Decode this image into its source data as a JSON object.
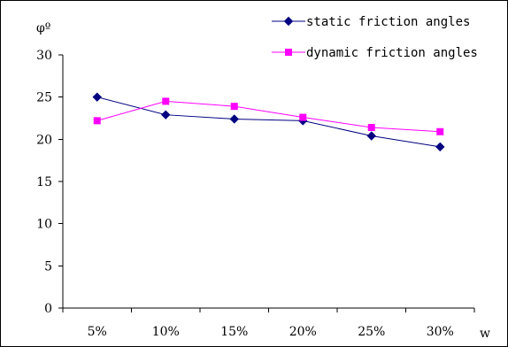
{
  "chart_data": {
    "type": "line",
    "title": "",
    "xlabel": "w",
    "ylabel": "φº",
    "categories": [
      "5%",
      "10%",
      "15%",
      "20%",
      "25%",
      "30%"
    ],
    "ylim": [
      0,
      30
    ],
    "yticks": [
      0,
      5,
      10,
      15,
      20,
      25,
      30
    ],
    "grid": false,
    "legend_position": "top-right",
    "series": [
      {
        "name": "static friction angles",
        "values": [
          25.0,
          22.9,
          22.4,
          22.2,
          20.4,
          19.1
        ],
        "color": "#000080",
        "marker": "diamond"
      },
      {
        "name": "dynamic friction angles",
        "values": [
          22.2,
          24.5,
          23.9,
          22.6,
          21.4,
          20.9
        ],
        "color": "#ff00ff",
        "marker": "square"
      }
    ]
  }
}
